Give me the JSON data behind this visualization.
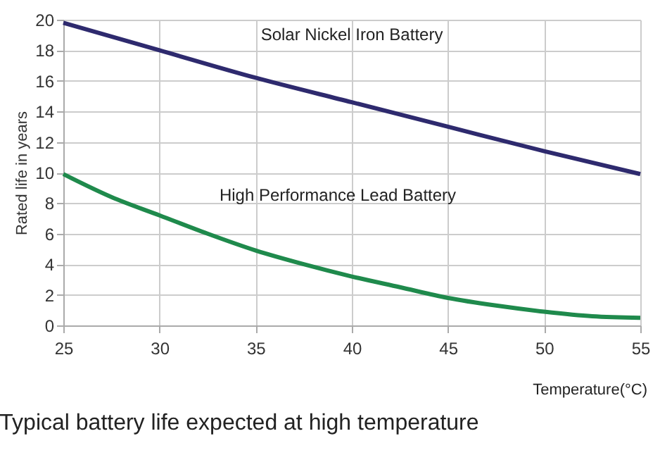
{
  "chart_data": {
    "type": "line",
    "title": "Typical battery life expected at high temperature",
    "xlabel": "Temperature(°C)",
    "ylabel": "Rated life in years",
    "xlim": [
      25,
      55
    ],
    "xticks": [
      25,
      30,
      35,
      40,
      45,
      50,
      55
    ],
    "ylim": [
      0,
      20
    ],
    "yticks": [
      0,
      2,
      4,
      6,
      8,
      10,
      12,
      14,
      16,
      18,
      20
    ],
    "grid": true,
    "legend": false,
    "marker": "none",
    "line_style": "solid",
    "series": [
      {
        "name": "Solar Nickel Iron Battery",
        "color": "#2e2a6e",
        "x": [
          25,
          30,
          35,
          40,
          45,
          50,
          55
        ],
        "values": [
          19.8,
          18.0,
          16.2,
          14.6,
          13.0,
          11.4,
          9.9
        ]
      },
      {
        "name": "High Performance Lead Battery",
        "color": "#1f8a4c",
        "x": [
          25,
          27.5,
          30,
          32.5,
          35,
          37.5,
          40,
          42.5,
          45,
          47.5,
          50,
          52.5,
          55
        ],
        "values": [
          9.9,
          8.4,
          7.2,
          6.0,
          4.9,
          4.0,
          3.2,
          2.5,
          1.8,
          1.3,
          0.9,
          0.6,
          0.5
        ]
      }
    ]
  }
}
